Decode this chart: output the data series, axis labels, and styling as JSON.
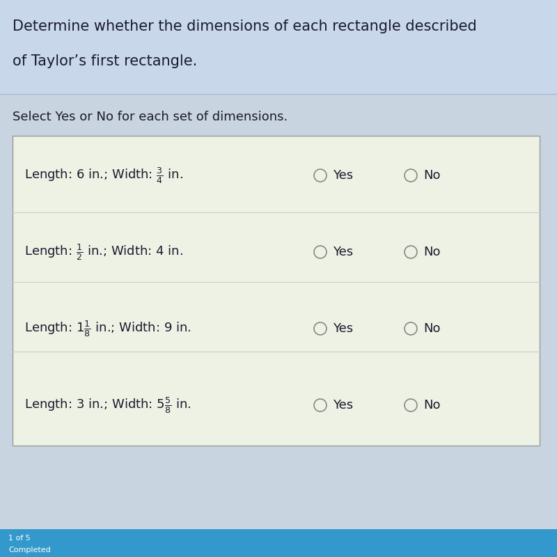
{
  "header_bg": "#c8d8ea",
  "header_text_line1": "Determine whether the dimensions of each rectangle described",
  "header_text_line2": "of Taylor’s first rectangle.",
  "header_fontsize": 15,
  "subheader_text": "Select Yes or No for each set of dimensions.",
  "subheader_fontsize": 13,
  "table_bg": "#eef2e4",
  "table_border": "#aaaaaa",
  "rows": [
    {
      "prefix": "Length: 6 in.; Width: ",
      "frac_num": "3",
      "frac_den": "4",
      "suffix": " in.",
      "whole": ""
    },
    {
      "prefix": "Length: ",
      "frac_num": "1",
      "frac_den": "2",
      "suffix": " in.; Width: 4 in.",
      "whole": ""
    },
    {
      "prefix": "Length: 1",
      "frac_num": "1",
      "frac_den": "8",
      "suffix": " in.; Width: 9 in.",
      "whole": ""
    },
    {
      "prefix": "Length: 3 in.; Width: 5",
      "frac_num": "5",
      "frac_den": "8",
      "suffix": " in.",
      "whole": ""
    }
  ],
  "yes_label": "Yes",
  "no_label": "No",
  "circle_color": "#888888",
  "text_color": "#1a1a2e",
  "bottom_bar_color": "#3399cc",
  "footer_line1": "1 of 5",
  "footer_line2": "Completed",
  "footer_fontsize": 8,
  "bg_color": "#c8d4e0"
}
